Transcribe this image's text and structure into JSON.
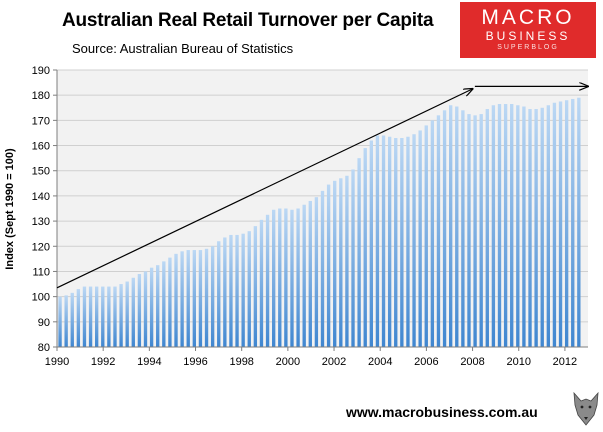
{
  "header": {
    "title": "Australian Real Retail Turnover per Capita",
    "subtitle": "Source: Australian Bureau of Statistics"
  },
  "logo": {
    "line1": "MACRO",
    "line2": "BUSINESS",
    "line3": "SUPERBLOG",
    "color": "#e02b2b"
  },
  "footer": {
    "url": "www.macrobusiness.com.au",
    "icon": "wolf-icon"
  },
  "chart_data": {
    "type": "bar",
    "ylabel": "Index (Sept 1990 = 100)",
    "xlabel": "",
    "ylim": [
      80,
      190
    ],
    "yticks": [
      80,
      90,
      100,
      110,
      120,
      130,
      140,
      150,
      160,
      170,
      180,
      190
    ],
    "xlim": [
      1990,
      2013
    ],
    "xticks": [
      "1990",
      "1992",
      "1994",
      "1996",
      "1998",
      "2000",
      "2002",
      "2004",
      "2006",
      "2008",
      "2010",
      "2012"
    ],
    "bar_color_top": "#bcd8f4",
    "bar_color_bottom": "#3f86d0",
    "grid": "horizontal",
    "annotations": [
      {
        "type": "arrow",
        "from": [
          1990,
          103.5
        ],
        "to": [
          2008,
          182.5
        ]
      },
      {
        "type": "arrow",
        "from": [
          2008.1,
          183.5
        ],
        "to": [
          2013,
          183.5
        ]
      }
    ],
    "series": [
      {
        "values": [
          100,
          100.5,
          101.5,
          103,
          104,
          104,
          104,
          104,
          104,
          104,
          105,
          106,
          107.5,
          109,
          110,
          111.5,
          112.5,
          114,
          115.5,
          117,
          118,
          118.5,
          118.5,
          118.5,
          119,
          120,
          122,
          123.5,
          124.5,
          124.5,
          125,
          126,
          128,
          130.5,
          132.5,
          134.5,
          135,
          135,
          134.5,
          135,
          136.5,
          138,
          139.5,
          142,
          144.5,
          146,
          147,
          148,
          150.5,
          155,
          159,
          162,
          164,
          164,
          163.5,
          163,
          163,
          163.5,
          164.5,
          166,
          168,
          170,
          172,
          174,
          176,
          175.5,
          174,
          172.5,
          172,
          172.5,
          174.5,
          176,
          176.5,
          176.5,
          176.5,
          176,
          175.5,
          174.5,
          174.5,
          175,
          176,
          177,
          177.5,
          178,
          178.5,
          179
        ]
      }
    ]
  }
}
